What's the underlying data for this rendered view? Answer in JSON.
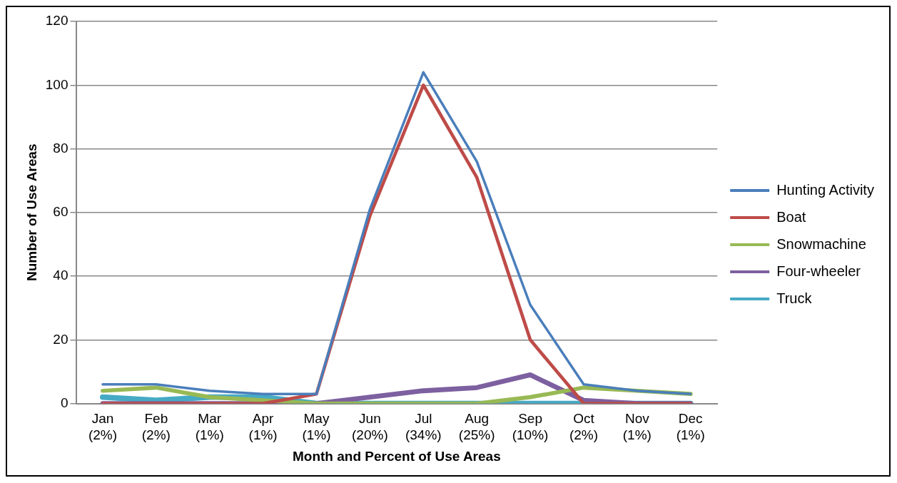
{
  "chart_data": {
    "type": "line",
    "xlabel": "Month and Percent of Use Areas",
    "ylabel": "Number of Use Areas",
    "categories": [
      "Jan\n(2%)",
      "Feb\n(2%)",
      "Mar\n(1%)",
      "Apr\n(1%)",
      "May\n(1%)",
      "Jun\n(20%)",
      "Jul\n(34%)",
      "Aug\n(25%)",
      "Sep\n(10%)",
      "Oct\n(2%)",
      "Nov\n(1%)",
      "Dec\n(1%)"
    ],
    "series": [
      {
        "name": "Hunting Activity",
        "color": "#4a7ebb",
        "values": [
          6,
          6,
          4,
          3,
          3,
          61,
          104,
          76,
          31,
          6,
          4,
          3
        ]
      },
      {
        "name": "Boat",
        "color": "#be4b48",
        "values": [
          0,
          0,
          0,
          0,
          3,
          59,
          100,
          71,
          20,
          0,
          0,
          0
        ]
      },
      {
        "name": "Snowmachine",
        "color": "#98b954",
        "values": [
          4,
          5,
          2,
          1,
          0,
          0,
          0,
          0,
          2,
          5,
          4,
          3
        ]
      },
      {
        "name": "Four-wheeler",
        "color": "#7d60a0",
        "values": [
          0,
          0,
          0,
          0,
          0,
          2,
          4,
          5,
          9,
          1,
          0,
          0
        ]
      },
      {
        "name": "Truck",
        "color": "#46aac5",
        "values": [
          2,
          1,
          2,
          2,
          0,
          0,
          0,
          0,
          0,
          0,
          0,
          0
        ]
      }
    ],
    "ylim": [
      0,
      120
    ],
    "yticks": [
      0,
      20,
      40,
      60,
      80,
      100,
      120
    ],
    "grid": "y",
    "legend": "right",
    "marker": "none",
    "line_style": "solid"
  }
}
